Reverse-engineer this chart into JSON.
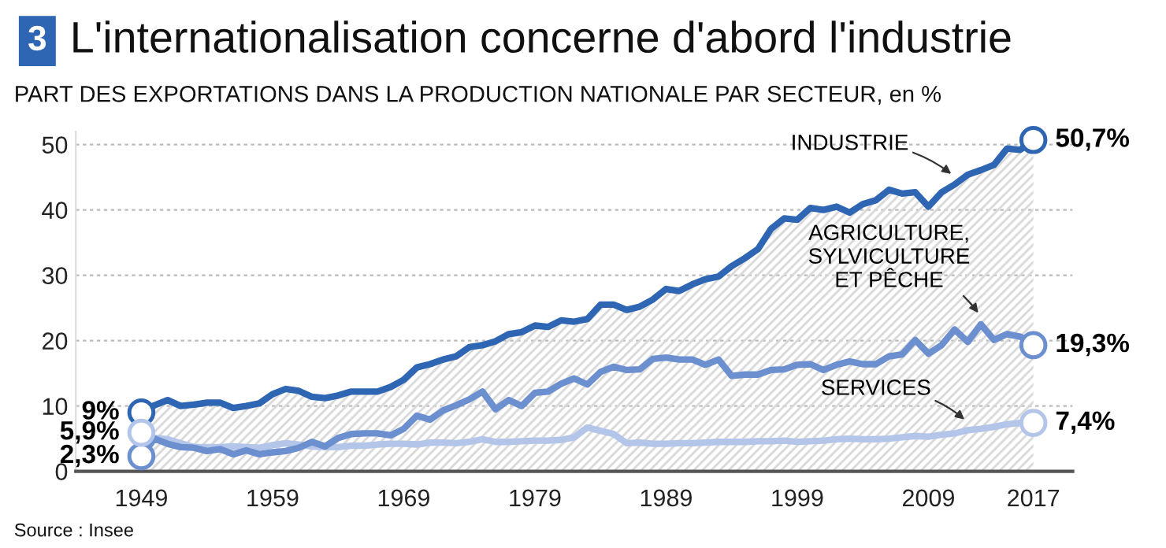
{
  "chart_data": {
    "type": "line",
    "title": "L'internationalisation concerne d'abord l'industrie",
    "subtitle": "PART DES EXPORTATIONS DANS LA PRODUCTION NATIONALE PAR SECTEUR, en %",
    "annotations": [
      "3",
      "Source : Insee"
    ],
    "x": [
      1949,
      1950,
      1951,
      1952,
      1953,
      1954,
      1955,
      1956,
      1957,
      1958,
      1959,
      1960,
      1961,
      1962,
      1963,
      1964,
      1965,
      1966,
      1967,
      1968,
      1969,
      1970,
      1971,
      1972,
      1973,
      1974,
      1975,
      1976,
      1977,
      1978,
      1979,
      1980,
      1981,
      1982,
      1983,
      1984,
      1985,
      1986,
      1987,
      1988,
      1989,
      1990,
      1991,
      1992,
      1993,
      1994,
      1995,
      1996,
      1997,
      1998,
      1999,
      2000,
      2001,
      2002,
      2003,
      2004,
      2005,
      2006,
      2007,
      2008,
      2009,
      2010,
      2011,
      2012,
      2013,
      2014,
      2015,
      2016,
      2017
    ],
    "series": [
      {
        "name": "INDUSTRIE",
        "type": "area",
        "color": "#2f66b3",
        "values": [
          9,
          10.1,
          10.9,
          10.0,
          10.2,
          10.5,
          10.5,
          9.7,
          10.0,
          10.4,
          11.8,
          12.6,
          12.3,
          11.4,
          11.2,
          11.6,
          12.2,
          12.2,
          12.2,
          12.9,
          14.0,
          15.9,
          16.4,
          17.1,
          17.6,
          19.0,
          19.3,
          19.9,
          21.0,
          21.3,
          22.3,
          22.1,
          23.1,
          22.9,
          23.3,
          25.5,
          25.5,
          24.7,
          25.2,
          26.3,
          27.9,
          27.6,
          28.6,
          29.4,
          29.8,
          31.4,
          32.6,
          34.0,
          37.1,
          38.7,
          38.5,
          40.3,
          40.0,
          40.5,
          39.6,
          40.9,
          41.5,
          43.1,
          42.5,
          42.7,
          40.5,
          42.7,
          43.9,
          45.4,
          46.1,
          46.9,
          49.4,
          49.2,
          50.7
        ],
        "value_labels": [
          "9%",
          null,
          null,
          null,
          null,
          null,
          null,
          null,
          null,
          null,
          null,
          null,
          null,
          null,
          null,
          null,
          null,
          null,
          null,
          null,
          null,
          null,
          null,
          null,
          null,
          null,
          null,
          null,
          null,
          null,
          null,
          null,
          null,
          null,
          null,
          null,
          null,
          null,
          null,
          null,
          null,
          null,
          null,
          null,
          null,
          null,
          null,
          null,
          null,
          null,
          null,
          null,
          null,
          null,
          null,
          null,
          null,
          null,
          null,
          null,
          null,
          null,
          null,
          null,
          null,
          null,
          null,
          null,
          "50,7%"
        ]
      },
      {
        "name": "AGRICULTURE,\nSYLVICULTURE\nET PÊCHE",
        "color": "#6b8fcf",
        "values": [
          2.3,
          5.0,
          4.2,
          3.7,
          3.6,
          3.1,
          3.4,
          2.6,
          3.2,
          2.6,
          2.9,
          3.1,
          3.6,
          4.5,
          3.8,
          5.1,
          5.7,
          5.8,
          5.8,
          5.5,
          6.5,
          8.5,
          7.9,
          9.3,
          10.1,
          11.0,
          12.2,
          9.5,
          10.9,
          10.0,
          12.0,
          12.2,
          13.4,
          14.2,
          13.3,
          15.2,
          16.0,
          15.5,
          15.6,
          17.2,
          17.4,
          17.1,
          17.1,
          16.3,
          17.1,
          14.6,
          14.8,
          14.8,
          15.5,
          15.6,
          16.3,
          16.4,
          15.5,
          16.3,
          16.8,
          16.4,
          16.4,
          17.6,
          17.9,
          20.1,
          18.0,
          19.3,
          21.7,
          19.8,
          22.5,
          20.1,
          21.0,
          20.6,
          19.3
        ],
        "value_labels": [
          "2,3%",
          null,
          null,
          null,
          null,
          null,
          null,
          null,
          null,
          null,
          null,
          null,
          null,
          null,
          null,
          null,
          null,
          null,
          null,
          null,
          null,
          null,
          null,
          null,
          null,
          null,
          null,
          null,
          null,
          null,
          null,
          null,
          null,
          null,
          null,
          null,
          null,
          null,
          null,
          null,
          null,
          null,
          null,
          null,
          null,
          null,
          null,
          null,
          null,
          null,
          null,
          null,
          null,
          null,
          null,
          null,
          null,
          null,
          null,
          null,
          null,
          null,
          null,
          null,
          null,
          null,
          null,
          null,
          "19,3%"
        ]
      },
      {
        "name": "SERVICES",
        "color": "#b4c5ea",
        "values": [
          5.9,
          5.1,
          4.9,
          4.3,
          3.7,
          3.7,
          3.7,
          3.8,
          3.7,
          3.6,
          4.0,
          4.3,
          4.1,
          3.8,
          3.7,
          3.7,
          3.9,
          3.9,
          4.1,
          4.2,
          4.2,
          4.1,
          4.4,
          4.4,
          4.3,
          4.5,
          4.9,
          4.5,
          4.5,
          4.6,
          4.7,
          4.7,
          4.8,
          5.2,
          6.7,
          6.2,
          5.7,
          4.3,
          4.4,
          4.2,
          4.2,
          4.3,
          4.3,
          4.4,
          4.5,
          4.5,
          4.5,
          4.6,
          4.6,
          4.7,
          4.5,
          4.6,
          4.7,
          4.9,
          5.0,
          4.9,
          4.9,
          5.0,
          5.2,
          5.4,
          5.3,
          5.6,
          5.8,
          6.3,
          6.5,
          6.8,
          7.2,
          7.4,
          7.4
        ],
        "value_labels": [
          "5,9%",
          null,
          null,
          null,
          null,
          null,
          null,
          null,
          null,
          null,
          null,
          null,
          null,
          null,
          null,
          null,
          null,
          null,
          null,
          null,
          null,
          null,
          null,
          null,
          null,
          null,
          null,
          null,
          null,
          null,
          null,
          null,
          null,
          null,
          null,
          null,
          null,
          null,
          null,
          null,
          null,
          null,
          null,
          null,
          null,
          null,
          null,
          null,
          null,
          null,
          null,
          null,
          null,
          null,
          null,
          null,
          null,
          null,
          null,
          null,
          null,
          null,
          null,
          null,
          null,
          null,
          null,
          null,
          "7,4%"
        ]
      }
    ],
    "xlim": [
      1944,
      2020
    ],
    "xticks": [
      1949,
      1959,
      1969,
      1979,
      1989,
      1999,
      2009,
      2017
    ],
    "ylim": [
      0,
      52
    ],
    "yticks": [
      0,
      10,
      20,
      30,
      40,
      50
    ],
    "grid": "y",
    "legend": false
  }
}
